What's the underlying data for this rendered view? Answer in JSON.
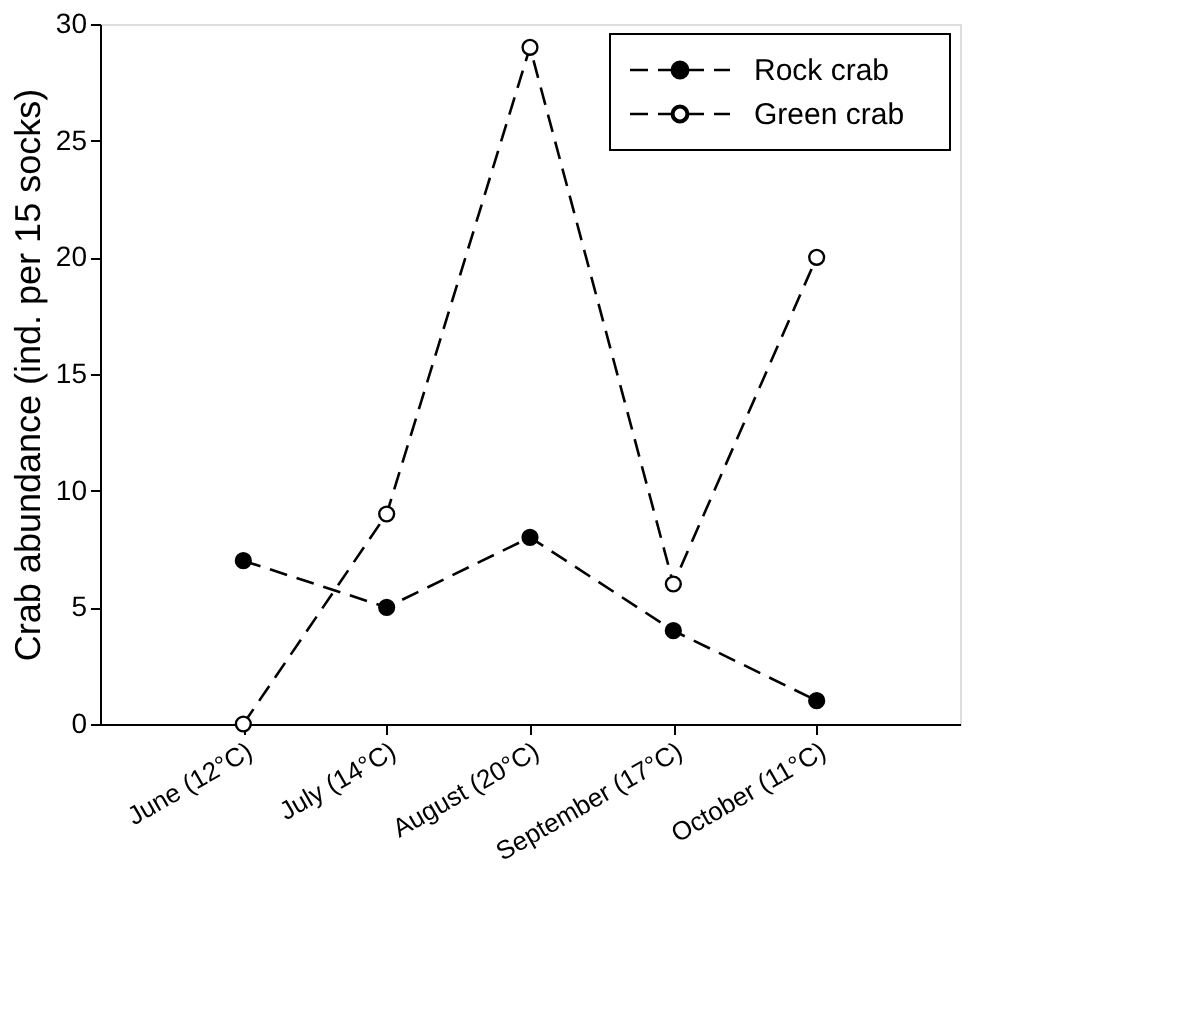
{
  "chart_data": {
    "type": "line",
    "ylabel": "Crab abundance (ind. per 15 socks)",
    "categories": [
      "June (12°C)",
      "July (14°C)",
      "August (20°C)",
      "September (17°C)",
      "October (11°C)"
    ],
    "series": [
      {
        "name": "Rock crab",
        "color": "#000000",
        "values": [
          7,
          5,
          8,
          4,
          1
        ]
      },
      {
        "name": "Green crab",
        "color": "#000000",
        "values": [
          0,
          9,
          29,
          6,
          20
        ]
      }
    ],
    "ylim": [
      0,
      30
    ],
    "yticks": [
      0,
      5,
      10,
      15,
      20,
      25,
      30
    ],
    "grid": false,
    "legend": "top right",
    "marker": "circle",
    "line_style": "dashed"
  }
}
